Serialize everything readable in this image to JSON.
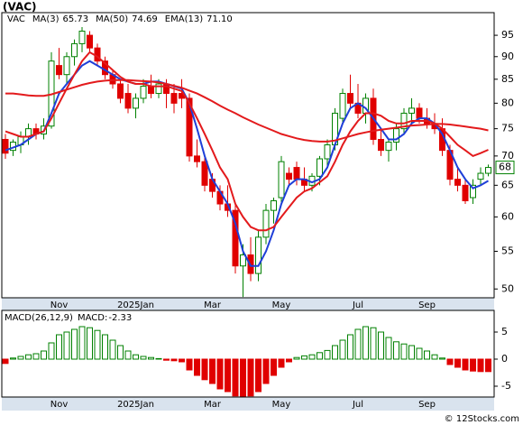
{
  "chart_data": [
    {
      "type": "candlestick",
      "title": "(VAC)",
      "legend_label": "VAC",
      "categories": [
        null,
        null,
        null,
        null,
        null,
        null,
        null,
        "Nov",
        null,
        null,
        null,
        null,
        null,
        null,
        null,
        null,
        null,
        "2025Jan",
        null,
        null,
        null,
        null,
        null,
        null,
        null,
        null,
        null,
        "Mar",
        null,
        null,
        null,
        null,
        null,
        null,
        null,
        null,
        "May",
        null,
        null,
        null,
        null,
        null,
        null,
        null,
        null,
        null,
        "Jul",
        null,
        null,
        null,
        null,
        null,
        null,
        null,
        null,
        "Sep",
        null,
        null,
        null,
        null,
        null,
        null,
        null,
        null
      ],
      "open": [
        73,
        71,
        72,
        73.5,
        75,
        74,
        75.5,
        88,
        86,
        90,
        93,
        95,
        92,
        89,
        86,
        84,
        82,
        79,
        81,
        83.5,
        82,
        84,
        82,
        82,
        81,
        70,
        69,
        66,
        64,
        62,
        61,
        53,
        54.5,
        52,
        57,
        61,
        63,
        67,
        68,
        66,
        65,
        66.5,
        69.5,
        72,
        77,
        82,
        80,
        78,
        81,
        73,
        71,
        72.5,
        75,
        78,
        79,
        77,
        76,
        75,
        71,
        66,
        65,
        63,
        66,
        67
      ],
      "high": [
        74,
        73,
        74.5,
        76,
        76,
        77,
        91,
        92,
        91,
        94,
        97,
        96,
        93,
        90,
        87,
        85,
        84,
        82,
        85,
        86,
        85,
        85,
        84,
        85,
        82,
        73,
        70,
        67,
        65,
        65,
        62,
        56,
        57,
        58,
        62,
        63,
        70,
        68,
        69,
        68,
        67,
        70,
        73,
        79,
        83,
        86,
        84,
        82,
        83,
        75,
        73,
        76,
        79,
        81,
        80,
        79,
        78,
        77,
        72,
        68,
        66,
        66,
        68,
        68.5
      ],
      "low": [
        69.5,
        70,
        70.5,
        72,
        73,
        73,
        75,
        85,
        84,
        88,
        91,
        91,
        88,
        85,
        83,
        80,
        78,
        77,
        80,
        81,
        81,
        79,
        78,
        79,
        69,
        68,
        64,
        63,
        61,
        60,
        52,
        49,
        51,
        51,
        56,
        59,
        62,
        65,
        65,
        64,
        64,
        65,
        68,
        71,
        76,
        79,
        77,
        76,
        72,
        70,
        69,
        71,
        74,
        76,
        76,
        75,
        74,
        70,
        65,
        64,
        62,
        62,
        65,
        66.5
      ],
      "close": [
        70.5,
        72.5,
        73.5,
        75,
        74,
        75.5,
        89,
        86,
        90,
        93,
        96,
        92,
        89,
        86,
        84,
        81,
        79,
        81,
        83.5,
        82,
        84,
        82,
        80,
        81,
        70,
        69,
        65,
        64,
        62,
        61,
        53,
        54.5,
        52,
        57,
        61,
        62.5,
        69,
        66,
        66,
        65,
        66.5,
        69.5,
        72,
        78,
        82,
        80,
        78,
        81,
        73,
        71,
        72.5,
        75,
        78,
        79,
        77,
        76,
        75,
        71,
        66,
        65,
        62.5,
        65,
        67,
        68
      ],
      "up_color": "#008000",
      "down_color": "#e00000",
      "series": [
        {
          "name": "MA(3)",
          "color": "#1f3fd8",
          "last": {
            "value": 65.73,
            "label": "65.73"
          },
          "values": [
            71,
            71.5,
            72,
            73,
            74,
            74.5,
            78,
            82,
            84,
            86,
            88,
            89,
            88,
            87,
            86,
            85,
            84.5,
            84,
            84,
            84.5,
            84.5,
            84,
            83.5,
            83,
            80,
            75,
            70,
            66,
            64,
            62,
            59,
            55,
            53,
            53,
            55,
            58,
            62,
            65,
            66,
            66,
            65.5,
            66,
            68,
            72,
            76,
            79,
            80,
            79,
            77,
            75,
            73,
            73,
            74,
            76,
            77,
            77,
            76,
            74,
            71,
            68,
            66,
            64.5,
            65,
            65.73
          ]
        },
        {
          "name": "MA(50)",
          "color": "#e31a1c",
          "last": {
            "value": 74.69,
            "label": "74.69"
          },
          "values": [
            82,
            82,
            81.8,
            81.6,
            81.5,
            81.5,
            81.8,
            82.3,
            82.8,
            83.3,
            83.8,
            84.2,
            84.5,
            84.7,
            84.8,
            84.8,
            84.8,
            84.7,
            84.6,
            84.5,
            84.3,
            84,
            83.6,
            83.2,
            82.6,
            82,
            81.2,
            80.4,
            79.5,
            78.7,
            78,
            77.2,
            76.5,
            75.8,
            75.2,
            74.6,
            74,
            73.6,
            73.2,
            72.9,
            72.7,
            72.6,
            72.6,
            72.8,
            73.2,
            73.6,
            74,
            74.3,
            74.6,
            74.8,
            75,
            75.2,
            75.4,
            75.6,
            75.7,
            75.8,
            75.9,
            75.9,
            75.8,
            75.6,
            75.4,
            75.2,
            75,
            74.69
          ]
        },
        {
          "name": "EMA(13)",
          "color": "#e31a1c",
          "last": {
            "value": 71.1,
            "label": "71.10"
          },
          "values": [
            74.5,
            74,
            73.5,
            73.5,
            74,
            74.5,
            77,
            80,
            83,
            86,
            89,
            91,
            90,
            88.5,
            87,
            85.5,
            84.5,
            84,
            84,
            83.5,
            83.5,
            83.5,
            83,
            82.5,
            80,
            77,
            74,
            71,
            68,
            66,
            62,
            60,
            58.5,
            58,
            58,
            58.5,
            60,
            61.5,
            63,
            64,
            64.5,
            65.5,
            66.5,
            69,
            72,
            74.5,
            76.5,
            78,
            78,
            77.5,
            76.5,
            76,
            76,
            76.5,
            76.5,
            76.5,
            76,
            75,
            73.5,
            72,
            71,
            70,
            70.5,
            71.1
          ]
        }
      ],
      "last_price": 68,
      "log_scale": true,
      "ylim": [
        48.9,
        100.6
      ],
      "yticks": [
        50,
        55,
        60,
        65,
        70,
        75,
        80,
        85,
        90,
        95
      ]
    },
    {
      "type": "bar",
      "title": "MACD(26,12,9)",
      "legend_name": "MACD:",
      "legend_value": -2.33,
      "categories": [
        null,
        null,
        null,
        null,
        null,
        null,
        null,
        "Nov",
        null,
        null,
        null,
        null,
        null,
        null,
        null,
        null,
        null,
        "2025Jan",
        null,
        null,
        null,
        null,
        null,
        null,
        null,
        null,
        null,
        "Mar",
        null,
        null,
        null,
        null,
        null,
        null,
        null,
        null,
        "May",
        null,
        null,
        null,
        null,
        null,
        null,
        null,
        null,
        null,
        "Jul",
        null,
        null,
        null,
        null,
        null,
        null,
        null,
        null,
        "Sep",
        null,
        null,
        null,
        null,
        null,
        null,
        null,
        null
      ],
      "values": [
        -0.8,
        0.2,
        0.5,
        0.8,
        1,
        1.5,
        3,
        4.5,
        5,
        5.5,
        6,
        5.8,
        5.3,
        4.5,
        3.5,
        2.5,
        1.5,
        0.8,
        0.5,
        0.3,
        0.1,
        -0.2,
        -0.3,
        -0.5,
        -2,
        -3,
        -3.8,
        -4.5,
        -5.5,
        -6,
        -6.8,
        -7,
        -6.8,
        -6,
        -4.5,
        -3,
        -1.5,
        -0.5,
        0.3,
        0.6,
        0.8,
        1.2,
        1.6,
        2.5,
        3.5,
        4.5,
        5.5,
        6,
        5.8,
        5,
        4,
        3.2,
        2.8,
        2.5,
        2,
        1.5,
        0.8,
        0.2,
        -1,
        -1.5,
        -2,
        -2.2,
        -2.3,
        -2.3
      ],
      "up_color": "#008000",
      "down_color": "#e00000",
      "legend_color": "#1f3fd8",
      "ylim": [
        -7,
        9
      ],
      "yticks": [
        -5,
        0,
        5
      ]
    }
  ],
  "footer": "© 12Stocks.com"
}
